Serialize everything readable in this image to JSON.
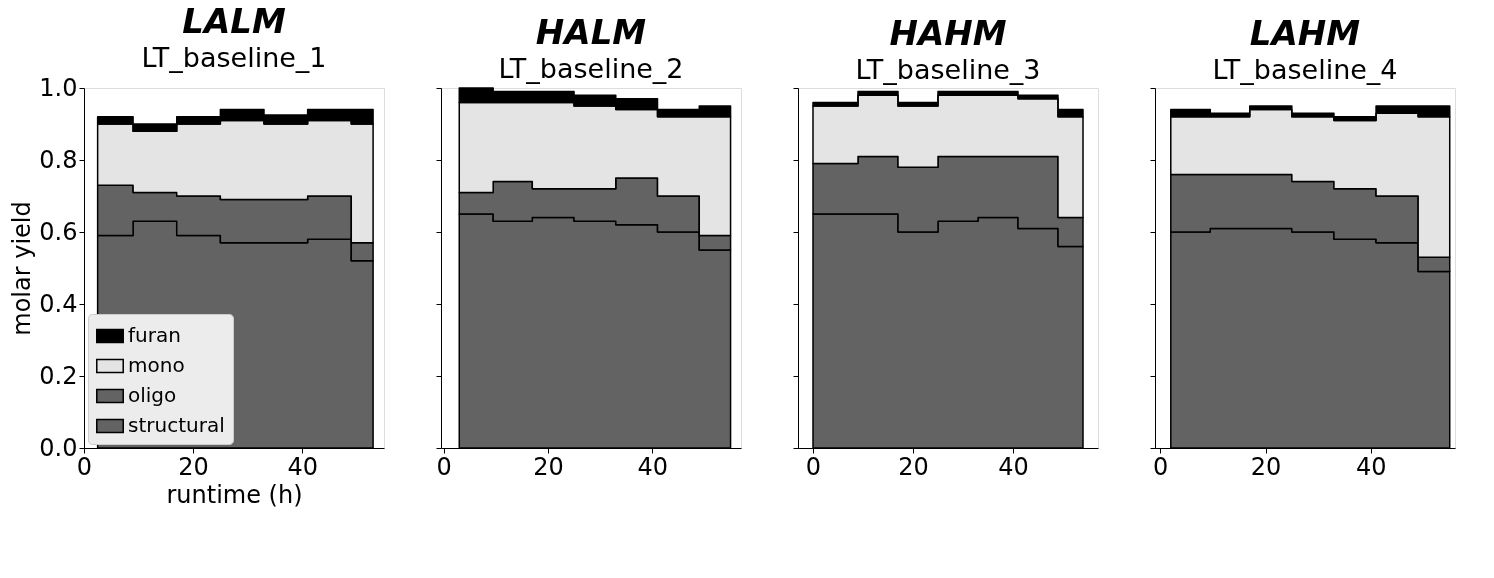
{
  "chart_data": [
    {
      "type": "area",
      "title": "LALM",
      "subtitle": "LT_baseline_1",
      "xlabel": "runtime (h)",
      "ylabel": "molar yield",
      "stacked": true,
      "legend": "bottom left",
      "line_style": "solid",
      "x": [
        2.5,
        9,
        17,
        25,
        33,
        41,
        49,
        53
      ],
      "series": [
        {
          "name": "structural",
          "color": "#636363",
          "values": [
            0.59,
            0.63,
            0.59,
            0.57,
            0.57,
            0.58,
            0.52,
            0.52
          ]
        },
        {
          "name": "oligo",
          "color": "#636363",
          "values": [
            0.14,
            0.08,
            0.11,
            0.12,
            0.12,
            0.12,
            0.05,
            0.05
          ]
        },
        {
          "name": "mono",
          "color": "#e4e4e4",
          "values": [
            0.17,
            0.17,
            0.2,
            0.22,
            0.21,
            0.21,
            0.33,
            0.33
          ]
        },
        {
          "name": "furan",
          "color": "#000000",
          "values": [
            0.02,
            0.02,
            0.02,
            0.03,
            0.025,
            0.03,
            0.04,
            0.04
          ]
        }
      ],
      "xlim": [
        0,
        55
      ],
      "ylim": [
        0,
        1
      ],
      "xticks": [
        0,
        20,
        40
      ],
      "yticks": [
        {
          "value": 0,
          "label": "0.0"
        },
        0.2,
        0.4,
        0.6,
        0.8,
        {
          "value": 1,
          "label": "1.0"
        }
      ]
    },
    {
      "type": "area",
      "title": "HALM",
      "subtitle": "LT_baseline_2",
      "stacked": true,
      "tick_labels": "x",
      "line_style": "solid",
      "x": [
        3,
        9.5,
        17,
        25,
        33,
        41,
        49,
        55
      ],
      "series": [
        {
          "color": "#636363",
          "values": [
            0.65,
            0.63,
            0.64,
            0.63,
            0.62,
            0.6,
            0.55,
            0.55
          ]
        },
        {
          "color": "#636363",
          "values": [
            0.06,
            0.11,
            0.08,
            0.09,
            0.13,
            0.1,
            0.04,
            0.04
          ]
        },
        {
          "color": "#e4e4e4",
          "values": [
            0.25,
            0.22,
            0.24,
            0.23,
            0.19,
            0.22,
            0.33,
            0.33
          ]
        },
        {
          "color": "#000000",
          "values": [
            0.04,
            0.03,
            0.03,
            0.03,
            0.03,
            0.02,
            0.03,
            0.03
          ]
        }
      ],
      "xlim": [
        -0.5,
        57
      ],
      "ylim": [
        0,
        1
      ],
      "xticks": [
        0,
        20,
        40
      ],
      "yticks": [
        {
          "value": 0,
          "label": null
        },
        {
          "value": 0.2,
          "label": null
        },
        {
          "value": 0.4,
          "label": null
        },
        {
          "value": 0.6,
          "label": null
        },
        {
          "value": 0.8,
          "label": null
        },
        {
          "value": 1,
          "label": null
        }
      ]
    },
    {
      "type": "area",
      "title": "HAHM",
      "subtitle": "LT_baseline_3",
      "stacked": true,
      "tick_labels": "x",
      "line_style": "solid",
      "x": [
        0,
        9,
        17,
        25,
        33,
        41,
        49,
        54
      ],
      "series": [
        {
          "color": "#636363",
          "values": [
            0.65,
            0.65,
            0.6,
            0.63,
            0.64,
            0.61,
            0.56,
            0.56
          ]
        },
        {
          "color": "#636363",
          "values": [
            0.14,
            0.16,
            0.18,
            0.18,
            0.17,
            0.2,
            0.08,
            0.08
          ]
        },
        {
          "color": "#e4e4e4",
          "values": [
            0.16,
            0.17,
            0.17,
            0.17,
            0.17,
            0.16,
            0.28,
            0.28
          ]
        },
        {
          "color": "#000000",
          "values": [
            0.01,
            0.01,
            0.01,
            0.01,
            0.01,
            0.01,
            0.02,
            0.02
          ]
        }
      ],
      "xlim": [
        -3,
        57
      ],
      "ylim": [
        0,
        1
      ],
      "xticks": [
        0,
        20,
        40
      ],
      "yticks": [
        {
          "value": 0,
          "label": null
        },
        {
          "value": 0.2,
          "label": null
        },
        {
          "value": 0.4,
          "label": null
        },
        {
          "value": 0.6,
          "label": null
        },
        {
          "value": 0.8,
          "label": null
        },
        {
          "value": 1,
          "label": null
        }
      ]
    },
    {
      "type": "area",
      "title": "LAHM",
      "subtitle": "LT_baseline_4",
      "stacked": true,
      "tick_labels": "x",
      "line_style": "solid",
      "x": [
        2,
        9.5,
        17,
        25,
        33,
        41,
        49,
        55
      ],
      "series": [
        {
          "color": "#636363",
          "values": [
            0.6,
            0.61,
            0.61,
            0.6,
            0.58,
            0.57,
            0.49,
            0.49
          ]
        },
        {
          "color": "#636363",
          "values": [
            0.16,
            0.15,
            0.15,
            0.14,
            0.14,
            0.13,
            0.04,
            0.04
          ]
        },
        {
          "color": "#e4e4e4",
          "values": [
            0.16,
            0.16,
            0.18,
            0.18,
            0.19,
            0.23,
            0.39,
            0.39
          ]
        },
        {
          "color": "#000000",
          "values": [
            0.02,
            0.01,
            0.01,
            0.01,
            0.01,
            0.02,
            0.03,
            0.03
          ]
        }
      ],
      "xlim": [
        -1,
        56
      ],
      "ylim": [
        0,
        1
      ],
      "xticks": [
        0,
        20,
        40
      ],
      "yticks": [
        {
          "value": 0,
          "label": null
        },
        {
          "value": 0.2,
          "label": null
        },
        {
          "value": 0.4,
          "label": null
        },
        {
          "value": 0.6,
          "label": null
        },
        {
          "value": 0.8,
          "label": null
        },
        {
          "value": 1,
          "label": null
        }
      ]
    }
  ]
}
